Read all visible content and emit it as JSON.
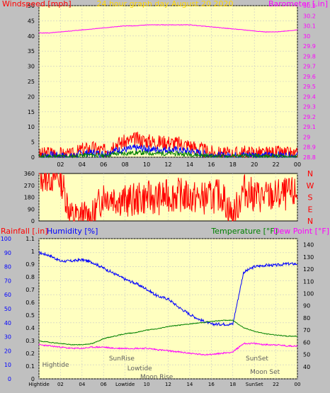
{
  "header": {
    "windspeed_label": "Windspeed [mph]",
    "title": "24 hour graph day   August 20 2020",
    "barometer_label": "Barometer [.in]"
  },
  "colors": {
    "plot_bg": "#ffffc0",
    "frame_bg": "#c0c0c0",
    "red": "#ff0000",
    "blue": "#0000ff",
    "green": "#008000",
    "magenta": "#ff00ff",
    "title_color": "#ffd700"
  },
  "wind_direction": {
    "compass_labels": [
      "N",
      "W",
      "S",
      "E",
      "N"
    ],
    "yticks": [
      360,
      270,
      180,
      90,
      0
    ]
  },
  "bottom_panel": {
    "rainfall_label": "Rainfall [.in]",
    "humidity_label": "Humidity [%]",
    "temperature_label": "Temperature [°F]",
    "dewpoint_label": "Dew Point [°F]",
    "annotations": [
      "Hightide",
      "SunRise",
      "Lowtide",
      "Moon Rise",
      "SunSet",
      "Moon Set"
    ],
    "xtick_labels_bottom": [
      "Hightide",
      "02",
      "04",
      "06",
      "Lowtide",
      "10",
      "12",
      "14",
      "16",
      "18",
      "SunSet",
      "22",
      "00"
    ]
  },
  "chart_data": [
    {
      "type": "line",
      "title": "24 hour graph day   August 20 2020",
      "x": [
        "02",
        "04",
        "06",
        "08",
        "10",
        "12",
        "14",
        "16",
        "18",
        "20",
        "22",
        "00"
      ],
      "series": [
        {
          "name": "Windspeed [mph]",
          "axis": "left",
          "ylim": [
            0,
            50
          ],
          "values_by_hour": [
            0.5,
            1.5,
            1,
            0.5,
            2.5,
            3,
            2,
            4.5,
            5,
            6,
            5.5,
            5,
            5,
            4.5,
            4,
            2.5,
            1.5,
            1,
            1,
            1.5,
            1.5,
            1,
            1.5,
            1,
            1
          ]
        },
        {
          "name": "Barometer [.in]",
          "axis": "right",
          "ylim": [
            28.8,
            30.3
          ],
          "values_by_hour": [
            30.03,
            30.03,
            30.04,
            30.05,
            30.06,
            30.07,
            30.08,
            30.09,
            30.1,
            30.1,
            30.11,
            30.11,
            30.11,
            30.11,
            30.11,
            30.1,
            30.09,
            30.08,
            30.07,
            30.06,
            30.05,
            30.04,
            30.04,
            30.05,
            30.06
          ]
        }
      ],
      "yticks_left": [
        0,
        5,
        10,
        15,
        20,
        25,
        30,
        35,
        40,
        45,
        50
      ],
      "yticks_right": [
        28.8,
        28.9,
        29,
        29.1,
        29.2,
        29.3,
        29.4,
        29.5,
        29.6,
        29.7,
        29.8,
        29.9,
        30,
        30.1,
        30.2,
        30.3
      ]
    },
    {
      "type": "line",
      "series": [
        {
          "name": "Wind direction",
          "ylim": [
            0,
            360
          ],
          "values_by_hour": [
            340,
            340,
            330,
            30,
            30,
            30,
            200,
            180,
            150,
            160,
            180,
            170,
            190,
            200,
            180,
            170,
            180,
            200,
            20,
            240,
            190,
            180,
            190,
            200,
            205
          ]
        }
      ],
      "yticks": [
        0,
        90,
        180,
        270,
        360
      ]
    },
    {
      "type": "line",
      "series": [
        {
          "name": "Humidity [%]",
          "axis": "left",
          "ylim": [
            0,
            100
          ],
          "values_by_hour": [
            90,
            88,
            84,
            84,
            85,
            83,
            79,
            75,
            71,
            68,
            64,
            59,
            57,
            51,
            46,
            42,
            39,
            39,
            39,
            76,
            80,
            81,
            81,
            82,
            82
          ]
        },
        {
          "name": "Temperature [°F]",
          "axis": "right",
          "ylim": [
            30,
            145
          ],
          "values_by_hour": [
            61,
            60,
            59,
            58,
            58,
            59,
            63,
            65,
            67,
            68,
            70,
            71,
            73,
            74,
            75,
            76,
            77,
            78,
            78,
            72,
            69,
            67,
            66,
            65,
            65
          ]
        },
        {
          "name": "Dew Point [°F]",
          "axis": "right",
          "ylim": [
            30,
            145
          ],
          "values_by_hour": [
            58,
            57,
            56,
            55,
            55,
            56,
            56,
            55,
            55,
            55,
            55,
            54,
            53,
            52,
            51,
            50,
            50,
            51,
            52,
            59,
            59,
            58,
            58,
            57,
            57
          ]
        },
        {
          "name": "Rainfall [.in]",
          "axis": "left2",
          "ylim": [
            0,
            1.1
          ],
          "values_by_hour": [
            0,
            0,
            0,
            0,
            0,
            0,
            0,
            0,
            0,
            0,
            0,
            0,
            0,
            0,
            0,
            0,
            0,
            0,
            0,
            0,
            0,
            0,
            0,
            0,
            0
          ]
        }
      ],
      "yticks_humidity": [
        0,
        10,
        20,
        30,
        40,
        50,
        60,
        70,
        80,
        90,
        100
      ],
      "yticks_rain": [
        0,
        0.1,
        0.2,
        0.3,
        0.4,
        0.5,
        0.6,
        0.7,
        0.8,
        0.9,
        1,
        1.1
      ],
      "yticks_temp": [
        40,
        50,
        60,
        70,
        80,
        90,
        100,
        110,
        120,
        130,
        140
      ]
    }
  ]
}
